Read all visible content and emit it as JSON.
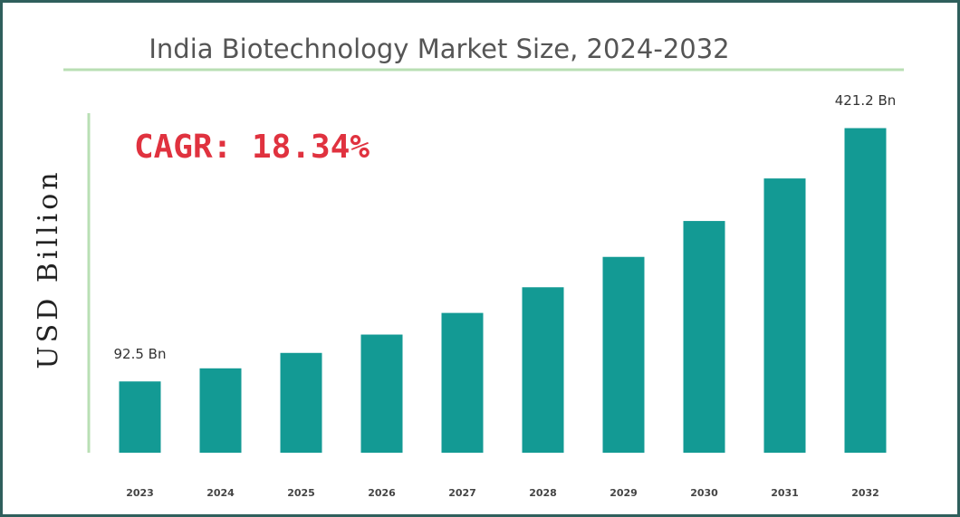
{
  "chart_data": {
    "type": "bar",
    "title": "India Biotechnology Market Size, 2024-2032",
    "annotation": "CAGR: 18.34%",
    "y_label": "USD Billion",
    "categories": [
      "2023",
      "2024",
      "2025",
      "2026",
      "2027",
      "2028",
      "2029",
      "2030",
      "2031",
      "2032"
    ],
    "values": [
      92.5,
      109.5,
      129.5,
      153.3,
      181.4,
      214.7,
      254.1,
      300.7,
      355.9,
      421.2
    ],
    "value_labels": [
      "92.5 Bn",
      null,
      null,
      null,
      null,
      null,
      null,
      null,
      null,
      "421.2 Bn"
    ],
    "color": "#139a94",
    "ylim": [
      0,
      450
    ]
  }
}
